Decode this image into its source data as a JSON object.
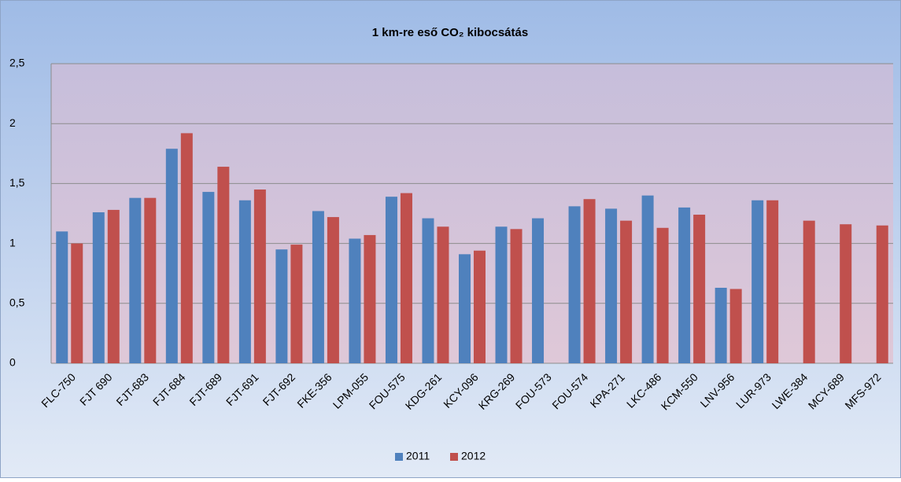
{
  "chart_data": {
    "type": "bar",
    "title": "1 km-re eső CO₂ kibocsátás",
    "categories": [
      "FLC-750",
      "FJT 690",
      "FJT-683",
      "FJT-684",
      "FJT-689",
      "FJT-691",
      "FJT-692",
      "FKE-356",
      "LPM-055",
      "FOU-575",
      "KDG-261",
      "KCY-096",
      "KRG-269",
      "FOU-573",
      "FOU-574",
      "KPA-271",
      "LKC-486",
      "KCM-550",
      "LNV-956",
      "LUR-973",
      "LWE-384",
      "MCY-689",
      "MFS-972"
    ],
    "series": [
      {
        "name": "2011",
        "color": "#4f81bd",
        "values": [
          1.1,
          1.26,
          1.38,
          1.79,
          1.43,
          1.36,
          0.95,
          1.27,
          1.04,
          1.39,
          1.21,
          0.91,
          1.14,
          1.21,
          1.31,
          1.29,
          1.4,
          1.3,
          0.63,
          1.36,
          null,
          null,
          null
        ]
      },
      {
        "name": "2012",
        "color": "#c0504d",
        "values": [
          1.0,
          1.28,
          1.38,
          1.92,
          1.64,
          1.45,
          0.99,
          1.22,
          1.07,
          1.42,
          1.14,
          0.94,
          1.12,
          null,
          1.37,
          1.19,
          1.13,
          1.24,
          0.62,
          1.36,
          1.19,
          1.16,
          1.15
        ]
      }
    ],
    "ylim": [
      0,
      2.5
    ],
    "yticks": [
      0,
      {
        "value": 0.5,
        "label": "0,5"
      },
      1,
      {
        "value": 1.5,
        "label": "1,5"
      },
      2,
      {
        "value": 2.5,
        "label": "2,5"
      }
    ],
    "grid": true,
    "legend": "bottom"
  }
}
